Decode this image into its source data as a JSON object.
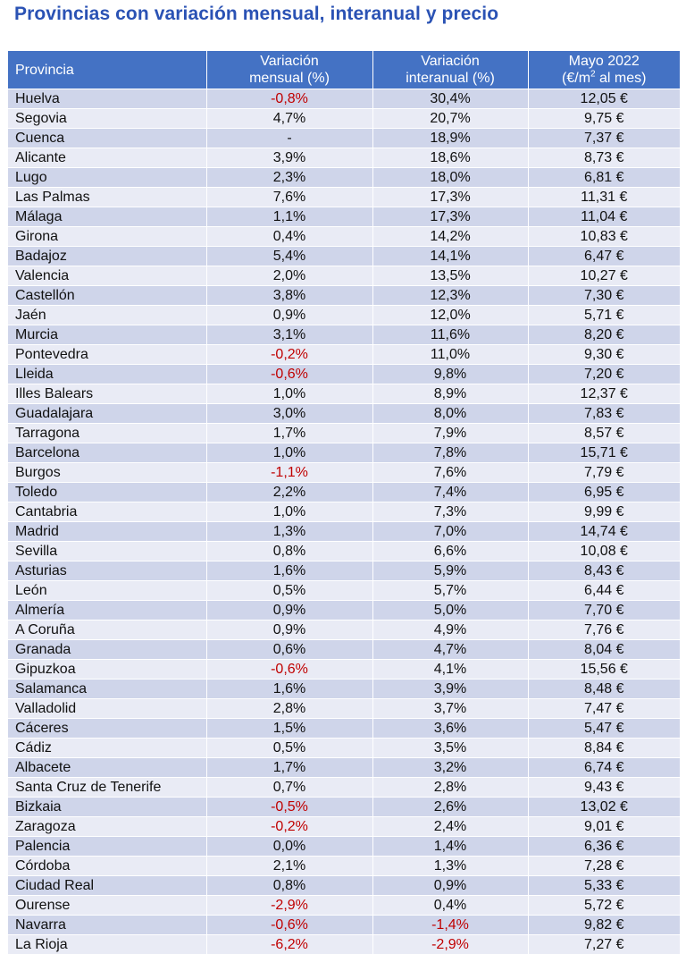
{
  "title": "Provincias con variación mensual, interanual y precio",
  "header": {
    "col1": "Provincia",
    "col2_line1": "Variación",
    "col2_line2": "mensual (%)",
    "col3_line1": "Variación",
    "col3_line2": "interanual (%)",
    "col4_line1": "Mayo 2022",
    "col4_line2_pre": "(€/m",
    "col4_line2_sup": "2",
    "col4_line2_post": " al mes)"
  },
  "colors": {
    "header_bg": "#4472c4",
    "row_odd": "#cfd5ea",
    "row_even": "#e9ebf5",
    "negative": "#c00000",
    "title": "#2a52b4"
  },
  "rows": [
    {
      "provincia": "Huelva",
      "mensual": "-0,8%",
      "interanual": "30,4%",
      "precio": "12,05 €"
    },
    {
      "provincia": "Segovia",
      "mensual": "4,7%",
      "interanual": "20,7%",
      "precio": "9,75 €"
    },
    {
      "provincia": "Cuenca",
      "mensual": "-",
      "interanual": "18,9%",
      "precio": "7,37 €"
    },
    {
      "provincia": "Alicante",
      "mensual": "3,9%",
      "interanual": "18,6%",
      "precio": "8,73 €"
    },
    {
      "provincia": "Lugo",
      "mensual": "2,3%",
      "interanual": "18,0%",
      "precio": "6,81 €"
    },
    {
      "provincia": "Las Palmas",
      "mensual": "7,6%",
      "interanual": "17,3%",
      "precio": "11,31 €"
    },
    {
      "provincia": "Málaga",
      "mensual": "1,1%",
      "interanual": "17,3%",
      "precio": "11,04 €"
    },
    {
      "provincia": "Girona",
      "mensual": "0,4%",
      "interanual": "14,2%",
      "precio": "10,83 €"
    },
    {
      "provincia": "Badajoz",
      "mensual": "5,4%",
      "interanual": "14,1%",
      "precio": "6,47 €"
    },
    {
      "provincia": "Valencia",
      "mensual": "2,0%",
      "interanual": "13,5%",
      "precio": "10,27 €"
    },
    {
      "provincia": "Castellón",
      "mensual": "3,8%",
      "interanual": "12,3%",
      "precio": "7,30 €"
    },
    {
      "provincia": "Jaén",
      "mensual": "0,9%",
      "interanual": "12,0%",
      "precio": "5,71 €"
    },
    {
      "provincia": "Murcia",
      "mensual": "3,1%",
      "interanual": "11,6%",
      "precio": "8,20 €"
    },
    {
      "provincia": "Pontevedra",
      "mensual": "-0,2%",
      "interanual": "11,0%",
      "precio": "9,30 €"
    },
    {
      "provincia": "Lleida",
      "mensual": "-0,6%",
      "interanual": "9,8%",
      "precio": "7,20 €"
    },
    {
      "provincia": "Illes Balears",
      "mensual": "1,0%",
      "interanual": "8,9%",
      "precio": "12,37 €"
    },
    {
      "provincia": "Guadalajara",
      "mensual": "3,0%",
      "interanual": "8,0%",
      "precio": "7,83 €"
    },
    {
      "provincia": "Tarragona",
      "mensual": "1,7%",
      "interanual": "7,9%",
      "precio": "8,57 €"
    },
    {
      "provincia": "Barcelona",
      "mensual": "1,0%",
      "interanual": "7,8%",
      "precio": "15,71 €"
    },
    {
      "provincia": "Burgos",
      "mensual": "-1,1%",
      "interanual": "7,6%",
      "precio": "7,79 €"
    },
    {
      "provincia": "Toledo",
      "mensual": "2,2%",
      "interanual": "7,4%",
      "precio": "6,95 €"
    },
    {
      "provincia": "Cantabria",
      "mensual": "1,0%",
      "interanual": "7,3%",
      "precio": "9,99 €"
    },
    {
      "provincia": "Madrid",
      "mensual": "1,3%",
      "interanual": "7,0%",
      "precio": "14,74 €"
    },
    {
      "provincia": "Sevilla",
      "mensual": "0,8%",
      "interanual": "6,6%",
      "precio": "10,08 €"
    },
    {
      "provincia": "Asturias",
      "mensual": "1,6%",
      "interanual": "5,9%",
      "precio": "8,43 €"
    },
    {
      "provincia": "León",
      "mensual": "0,5%",
      "interanual": "5,7%",
      "precio": "6,44 €"
    },
    {
      "provincia": "Almería",
      "mensual": "0,9%",
      "interanual": "5,0%",
      "precio": "7,70 €"
    },
    {
      "provincia": "A Coruña",
      "mensual": "0,9%",
      "interanual": "4,9%",
      "precio": "7,76 €"
    },
    {
      "provincia": "Granada",
      "mensual": "0,6%",
      "interanual": "4,7%",
      "precio": "8,04 €"
    },
    {
      "provincia": "Gipuzkoa",
      "mensual": "-0,6%",
      "interanual": "4,1%",
      "precio": "15,56 €"
    },
    {
      "provincia": "Salamanca",
      "mensual": "1,6%",
      "interanual": "3,9%",
      "precio": "8,48 €"
    },
    {
      "provincia": "Valladolid",
      "mensual": "2,8%",
      "interanual": "3,7%",
      "precio": "7,47 €"
    },
    {
      "provincia": "Cáceres",
      "mensual": "1,5%",
      "interanual": "3,6%",
      "precio": "5,47 €"
    },
    {
      "provincia": "Cádiz",
      "mensual": "0,5%",
      "interanual": "3,5%",
      "precio": "8,84 €"
    },
    {
      "provincia": "Albacete",
      "mensual": "1,7%",
      "interanual": "3,2%",
      "precio": "6,74 €"
    },
    {
      "provincia": "Santa Cruz de Tenerife",
      "mensual": "0,7%",
      "interanual": "2,8%",
      "precio": "9,43 €"
    },
    {
      "provincia": "Bizkaia",
      "mensual": "-0,5%",
      "interanual": "2,6%",
      "precio": "13,02 €"
    },
    {
      "provincia": "Zaragoza",
      "mensual": "-0,2%",
      "interanual": "2,4%",
      "precio": "9,01 €"
    },
    {
      "provincia": "Palencia",
      "mensual": "0,0%",
      "interanual": "1,4%",
      "precio": "6,36 €"
    },
    {
      "provincia": "Córdoba",
      "mensual": "2,1%",
      "interanual": "1,3%",
      "precio": "7,28 €"
    },
    {
      "provincia": "Ciudad Real",
      "mensual": "0,8%",
      "interanual": "0,9%",
      "precio": "5,33 €"
    },
    {
      "provincia": "Ourense",
      "mensual": "-2,9%",
      "interanual": "0,4%",
      "precio": "5,72 €"
    },
    {
      "provincia": "Navarra",
      "mensual": "-0,6%",
      "interanual": "-1,4%",
      "precio": "9,82 €"
    },
    {
      "provincia": "La Rioja",
      "mensual": "-6,2%",
      "interanual": "-2,9%",
      "precio": "7,27 €"
    }
  ]
}
